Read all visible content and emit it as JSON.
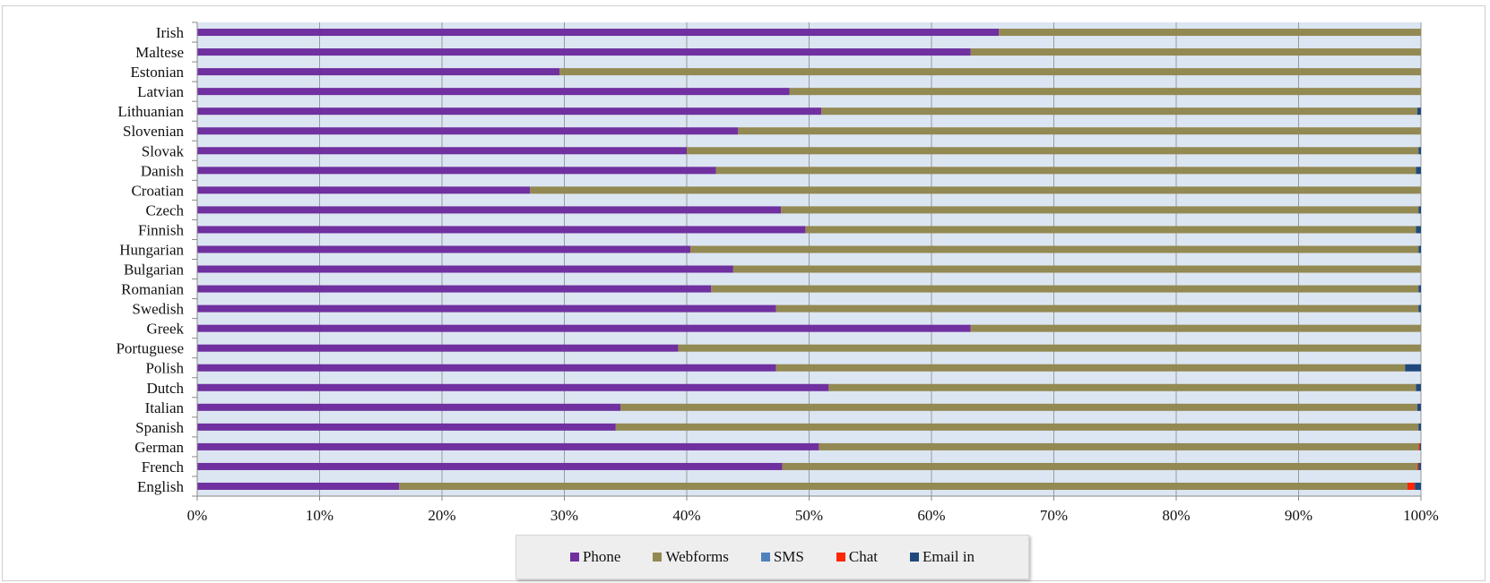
{
  "chart_data": {
    "type": "bar",
    "orientation": "horizontal",
    "stacked": "percent",
    "categories": [
      "Irish",
      "Maltese",
      "Estonian",
      "Latvian",
      "Lithuanian",
      "Slovenian",
      "Slovak",
      "Danish",
      "Croatian",
      "Czech",
      "Finnish",
      "Hungarian",
      "Bulgarian",
      "Romanian",
      "Swedish",
      "Greek",
      "Portuguese",
      "Polish",
      "Dutch",
      "Italian",
      "Spanish",
      "German",
      "French",
      "English"
    ],
    "series": [
      {
        "name": "Phone",
        "color": "#7030a0",
        "values": [
          65.5,
          63.2,
          29.6,
          48.4,
          51.0,
          44.2,
          40.0,
          42.4,
          27.2,
          47.7,
          49.7,
          40.3,
          43.8,
          42.0,
          47.3,
          63.2,
          39.3,
          47.3,
          51.6,
          34.6,
          34.2,
          50.8,
          47.8,
          16.5
        ]
      },
      {
        "name": "Webforms",
        "color": "#938953",
        "values": [
          34.5,
          36.8,
          70.4,
          51.6,
          48.7,
          55.8,
          59.8,
          57.2,
          72.8,
          52.1,
          49.9,
          59.5,
          56.2,
          57.8,
          52.5,
          36.8,
          60.7,
          51.4,
          48.0,
          65.1,
          65.6,
          49.0,
          51.9,
          82.4
        ]
      },
      {
        "name": "SMS",
        "color": "#4f81bd",
        "values": [
          0,
          0,
          0,
          0,
          0,
          0,
          0,
          0,
          0,
          0,
          0,
          0,
          0,
          0,
          0,
          0,
          0,
          0,
          0,
          0,
          0,
          0,
          0,
          0
        ]
      },
      {
        "name": "Chat",
        "color": "#ff2600",
        "values": [
          0,
          0,
          0,
          0,
          0,
          0,
          0,
          0,
          0,
          0,
          0,
          0,
          0,
          0,
          0,
          0,
          0,
          0,
          0,
          0,
          0,
          0.1,
          0.1,
          0.6
        ]
      },
      {
        "name": "Email in",
        "color": "#1f497d",
        "values": [
          0,
          0,
          0,
          0,
          0.3,
          0,
          0.2,
          0.4,
          0,
          0.2,
          0.4,
          0.2,
          0,
          0.2,
          0.2,
          0,
          0,
          1.3,
          0.4,
          0.3,
          0.2,
          0.1,
          0.2,
          0.5
        ]
      }
    ],
    "x_ticks": [
      "0%",
      "10%",
      "20%",
      "30%",
      "40%",
      "50%",
      "60%",
      "70%",
      "80%",
      "90%",
      "100%"
    ],
    "xlim": [
      0,
      100
    ],
    "grid": true,
    "legend_position": "bottom",
    "plot_background": "#dce6f2"
  }
}
